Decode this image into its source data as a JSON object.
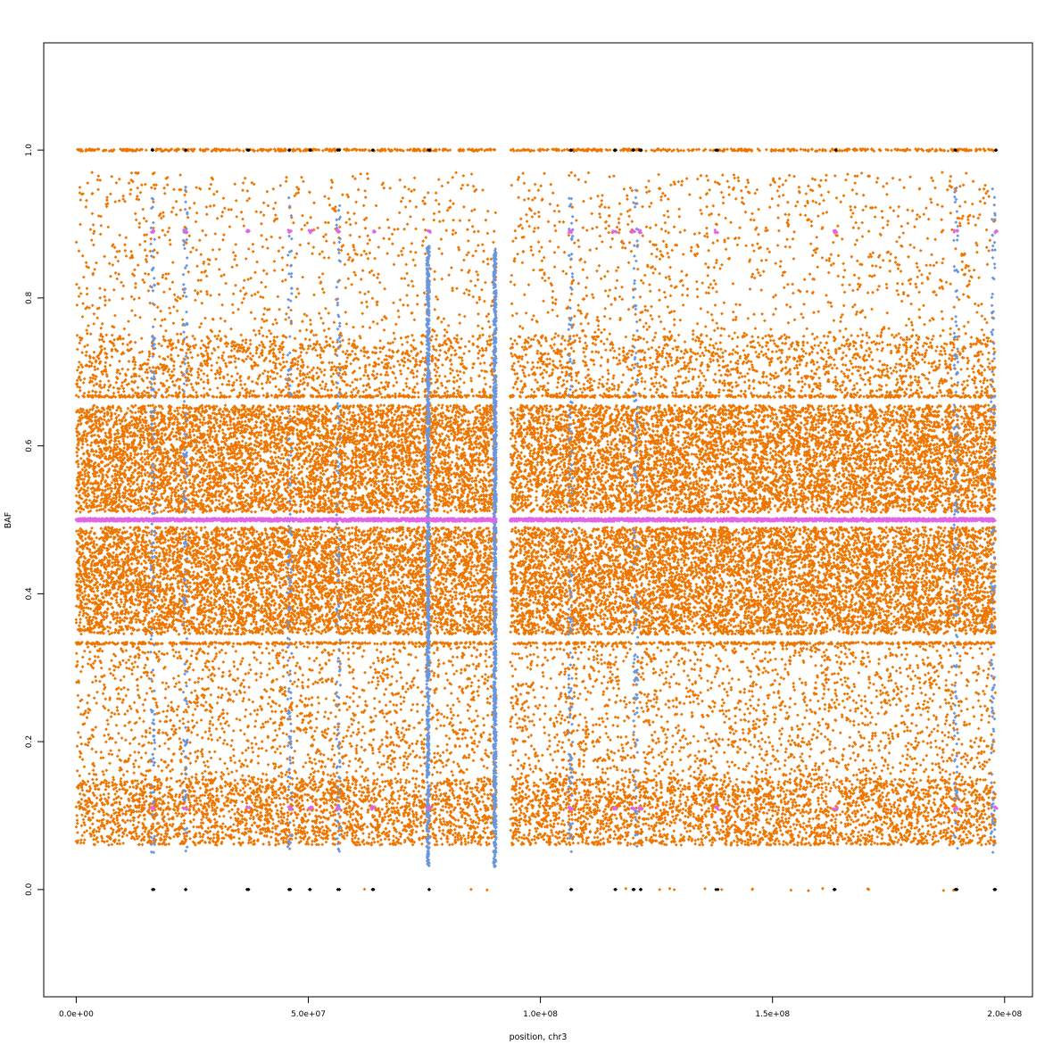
{
  "chart_data": {
    "type": "scatter",
    "title": "",
    "xlabel": "position, chr3",
    "ylabel": "BAF",
    "xlim": [
      -7000000,
      206000000
    ],
    "ylim": [
      -0.145,
      1.145
    ],
    "x_ticks": [
      0,
      50000000,
      100000000,
      150000000,
      200000000
    ],
    "x_tick_labels": [
      "0.0e+00",
      "5.0e+07",
      "1.0e+08",
      "1.5e+08",
      "2.0e+08"
    ],
    "y_ticks": [
      0.0,
      0.2,
      0.4,
      0.6,
      0.8,
      1.0
    ],
    "y_tick_labels": [
      "0.0",
      "0.2",
      "0.4",
      "0.6",
      "0.8",
      "1.0"
    ],
    "grid": false,
    "legend": "none",
    "colors": {
      "orange": "#EE7600",
      "blue": "#6A96DC",
      "magenta": "#E066E6",
      "black": "#000000"
    },
    "data_extent": {
      "x_segments": [
        [
          0,
          90500000
        ],
        [
          93500000,
          198000000
        ]
      ],
      "centromere_gap": [
        90500000,
        93500000
      ]
    },
    "series": [
      {
        "color_key": "orange",
        "description_bands": [
          {
            "y_range": [
              0.06,
              0.33
            ]
          },
          {
            "y_range": [
              0.345,
              0.49
            ]
          },
          {
            "y_range": [
              0.51,
              0.655
            ]
          },
          {
            "y_range": [
              0.67,
              0.97
            ]
          }
        ],
        "horizontal_lines_y": [
          0.0,
          1.0,
          0.333,
          0.667
        ]
      },
      {
        "color_key": "magenta",
        "baseline_y": 0.5,
        "cluster_x": [
          16500000,
          23500000,
          37000000,
          46000000,
          50500000,
          56500000,
          64000000,
          76000000,
          106500000,
          116000000,
          120000000,
          121500000,
          138000000,
          163500000,
          189500000,
          198000000
        ],
        "cluster_y": [
          0.89,
          0.11
        ]
      },
      {
        "color_key": "black",
        "cluster_x": [
          16500000,
          23500000,
          37000000,
          46000000,
          50500000,
          56500000,
          64000000,
          76000000,
          106500000,
          116000000,
          120000000,
          121500000,
          138000000,
          163500000,
          189500000,
          198000000
        ],
        "cluster_y": [
          0.0,
          1.0
        ]
      },
      {
        "color_key": "blue",
        "dense_columns_x": [
          75800000,
          90200000
        ],
        "sparse_columns_x": [
          16500000,
          23500000,
          46000000,
          56500000,
          106500000,
          120500000,
          189500000,
          197500000
        ]
      }
    ]
  }
}
